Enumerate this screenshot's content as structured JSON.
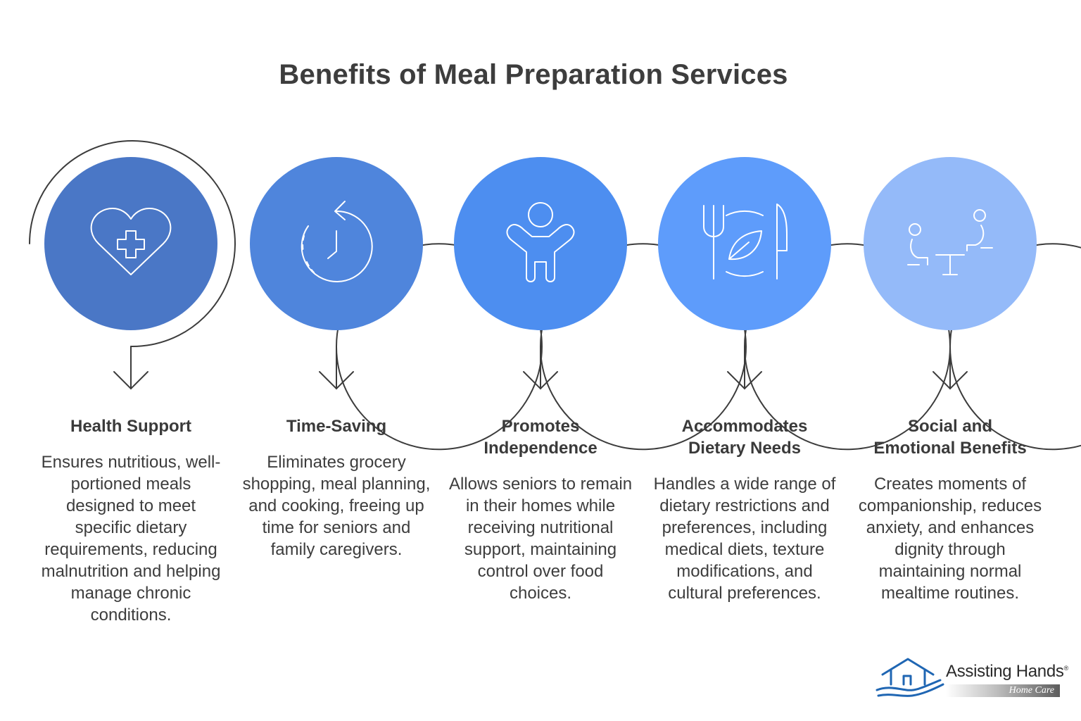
{
  "title": "Benefits of Meal Preparation Services",
  "items": [
    {
      "heading": "Health Support",
      "description": "Ensures nutritious, well-portioned meals designed to meet specific dietary requirements, reducing malnutrition and helping manage chronic conditions.",
      "icon": "heart-medical-icon",
      "color": "#4a77c6"
    },
    {
      "heading": "Time-Saving",
      "description": "Eliminates grocery shopping, meal planning, and cooking, freeing up time for seniors and family caregivers.",
      "icon": "clock-refresh-icon",
      "color": "#4f85dc"
    },
    {
      "heading": "Promotes Independence",
      "description": "Allows seniors to remain in their homes while receiving nutritional support, maintaining control over food choices.",
      "icon": "person-arms-up-icon",
      "color": "#4d8ef0"
    },
    {
      "heading": "Accommodates Dietary Needs",
      "description": "Handles a wide range of dietary restrictions and preferences, including medical diets, texture modifications, and cultural preferences.",
      "icon": "plate-fork-knife-leaf-icon",
      "color": "#5e9cfb"
    },
    {
      "heading": "Social and Emotional Benefits",
      "description": "Creates moments of companionship, reduces anxiety, and enhances dignity through maintaining normal mealtime routines.",
      "icon": "people-at-table-icon",
      "color": "#94baf9"
    }
  ],
  "logo": {
    "brand": "Assisting Hands",
    "registered": "®",
    "tagline": "Home Care",
    "color": "#1f66b3"
  }
}
